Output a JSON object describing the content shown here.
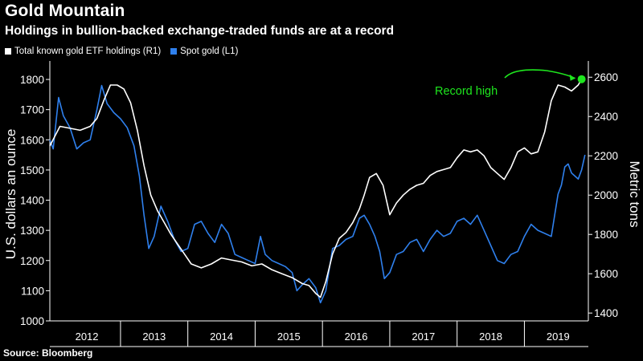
{
  "title": "Gold Mountain",
  "subtitle": "Holdings in bullion-backed exchange-traded funds are at a record",
  "source": "Source: Bloomberg",
  "colors": {
    "etf": "#ffffff",
    "spot": "#2f80ed",
    "annotation": "#1ee61e",
    "axis": "#ffffff",
    "background": "#000000"
  },
  "legend": [
    {
      "label": "Total known gold ETF holdings (R1)",
      "color": "#ffffff"
    },
    {
      "label": "Spot gold (L1)",
      "color": "#2f80ed"
    }
  ],
  "chart_data": {
    "type": "line",
    "x_range": [
      2011.95,
      2019.95
    ],
    "left_axis": {
      "label": "U.S. dollars an ounce",
      "min": 1000,
      "max": 1840,
      "ticks": [
        1000,
        1100,
        1200,
        1300,
        1400,
        1500,
        1600,
        1700,
        1800
      ]
    },
    "right_axis": {
      "label": "Metric tons",
      "min": 1360,
      "max": 2650,
      "ticks": [
        1400,
        1600,
        1800,
        2000,
        2200,
        2400,
        2600
      ]
    },
    "x_ticks": [
      "2012",
      "2013",
      "2014",
      "2015",
      "2016",
      "2017",
      "2018",
      "2019"
    ],
    "annotation": {
      "text": "Record high",
      "x": 2019.85,
      "y_right": 2590
    },
    "series": [
      {
        "name": "Spot gold (L1)",
        "axis": "left",
        "x": [
          2011.95,
          2012.0,
          2012.08,
          2012.15,
          2012.25,
          2012.35,
          2012.45,
          2012.55,
          2012.65,
          2012.72,
          2012.8,
          2012.9,
          2013.0,
          2013.1,
          2013.2,
          2013.28,
          2013.35,
          2013.42,
          2013.5,
          2013.6,
          2013.7,
          2013.8,
          2013.9,
          2014.0,
          2014.1,
          2014.2,
          2014.3,
          2014.4,
          2014.5,
          2014.6,
          2014.7,
          2014.8,
          2014.9,
          2015.0,
          2015.08,
          2015.15,
          2015.25,
          2015.35,
          2015.45,
          2015.55,
          2015.62,
          2015.7,
          2015.8,
          2015.9,
          2015.97,
          2016.05,
          2016.15,
          2016.25,
          2016.35,
          2016.45,
          2016.55,
          2016.62,
          2016.7,
          2016.78,
          2016.85,
          2016.92,
          2017.0,
          2017.1,
          2017.2,
          2017.3,
          2017.4,
          2017.5,
          2017.6,
          2017.7,
          2017.8,
          2017.9,
          2018.0,
          2018.1,
          2018.2,
          2018.3,
          2018.4,
          2018.5,
          2018.6,
          2018.7,
          2018.8,
          2018.9,
          2019.0,
          2019.1,
          2019.2,
          2019.3,
          2019.4,
          2019.45,
          2019.5,
          2019.55,
          2019.6,
          2019.65,
          2019.7,
          2019.75,
          2019.8,
          2019.85,
          2019.9
        ],
        "values": [
          1600,
          1570,
          1740,
          1680,
          1640,
          1570,
          1590,
          1600,
          1700,
          1780,
          1720,
          1690,
          1670,
          1640,
          1580,
          1480,
          1350,
          1240,
          1280,
          1380,
          1330,
          1270,
          1230,
          1240,
          1320,
          1330,
          1290,
          1260,
          1320,
          1290,
          1220,
          1210,
          1200,
          1190,
          1280,
          1220,
          1200,
          1190,
          1180,
          1160,
          1100,
          1120,
          1140,
          1110,
          1060,
          1100,
          1240,
          1250,
          1270,
          1280,
          1340,
          1350,
          1320,
          1280,
          1230,
          1140,
          1160,
          1220,
          1230,
          1260,
          1270,
          1230,
          1270,
          1300,
          1280,
          1290,
          1330,
          1340,
          1320,
          1350,
          1300,
          1250,
          1200,
          1190,
          1220,
          1230,
          1280,
          1320,
          1300,
          1290,
          1280,
          1350,
          1420,
          1450,
          1510,
          1520,
          1490,
          1480,
          1470,
          1500,
          1550
        ]
      },
      {
        "name": "Total known gold ETF holdings (R1)",
        "axis": "right",
        "x": [
          2011.95,
          2012.1,
          2012.25,
          2012.4,
          2012.55,
          2012.65,
          2012.75,
          2012.85,
          2012.95,
          2013.05,
          2013.15,
          2013.25,
          2013.35,
          2013.45,
          2013.55,
          2013.65,
          2013.75,
          2013.85,
          2013.95,
          2014.05,
          2014.2,
          2014.35,
          2014.5,
          2014.65,
          2014.8,
          2014.95,
          2015.1,
          2015.25,
          2015.4,
          2015.55,
          2015.7,
          2015.8,
          2015.9,
          2015.97,
          2016.05,
          2016.15,
          2016.25,
          2016.35,
          2016.45,
          2016.55,
          2016.62,
          2016.7,
          2016.8,
          2016.9,
          2017.0,
          2017.1,
          2017.2,
          2017.3,
          2017.4,
          2017.5,
          2017.6,
          2017.7,
          2017.8,
          2017.9,
          2018.0,
          2018.1,
          2018.2,
          2018.3,
          2018.4,
          2018.5,
          2018.6,
          2018.7,
          2018.8,
          2018.9,
          2019.0,
          2019.1,
          2019.2,
          2019.3,
          2019.4,
          2019.5,
          2019.6,
          2019.7,
          2019.8,
          2019.85
        ],
        "values": [
          2250,
          2350,
          2340,
          2330,
          2350,
          2390,
          2480,
          2560,
          2560,
          2540,
          2470,
          2330,
          2150,
          2000,
          1920,
          1860,
          1800,
          1750,
          1700,
          1650,
          1630,
          1650,
          1680,
          1670,
          1660,
          1640,
          1650,
          1620,
          1600,
          1580,
          1550,
          1540,
          1500,
          1480,
          1560,
          1700,
          1780,
          1810,
          1860,
          1930,
          2000,
          2090,
          2110,
          2050,
          1900,
          1960,
          2000,
          2030,
          2050,
          2060,
          2100,
          2120,
          2130,
          2140,
          2190,
          2230,
          2220,
          2230,
          2200,
          2140,
          2110,
          2080,
          2140,
          2220,
          2240,
          2210,
          2220,
          2320,
          2480,
          2560,
          2550,
          2530,
          2560,
          2590
        ]
      }
    ]
  }
}
